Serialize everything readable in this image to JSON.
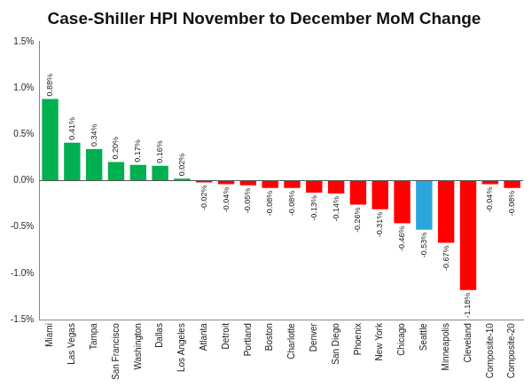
{
  "chart_data": {
    "type": "bar",
    "title": "Case-Shiller HPI November to December MoM Change",
    "categories": [
      "Miami",
      "Las Vegas",
      "Tampa",
      "San Francisco",
      "Washington",
      "Dallas",
      "Los Angeles",
      "Atlanta",
      "Detroit",
      "Portland",
      "Boston",
      "Charlotte",
      "Denver",
      "San Diego",
      "Phoenix",
      "New York",
      "Chicago",
      "Seattle",
      "Minneapolis",
      "Cleveland",
      "Composite-10",
      "Composite-20"
    ],
    "values": [
      0.88,
      0.41,
      0.34,
      0.2,
      0.17,
      0.16,
      0.02,
      -0.02,
      -0.04,
      -0.05,
      -0.08,
      -0.08,
      -0.13,
      -0.14,
      -0.26,
      -0.31,
      -0.46,
      -0.53,
      -0.67,
      -1.18,
      -0.04,
      -0.08
    ],
    "value_labels": [
      "0.88%",
      "0.41%",
      "0.34%",
      "0.20%",
      "0.17%",
      "0.16%",
      "0.02%",
      "-0.02%",
      "-0.04%",
      "-0.05%",
      "-0.08%",
      "-0.08%",
      "-0.13%",
      "-0.14%",
      "-0.26%",
      "-0.31%",
      "-0.46%",
      "-0.53%",
      "-0.67%",
      "-1.18%",
      "-0.04%",
      "-0.08%"
    ],
    "colors": [
      "#00b050",
      "#00b050",
      "#00b050",
      "#00b050",
      "#00b050",
      "#00b050",
      "#00b050",
      "#ff0000",
      "#ff0000",
      "#ff0000",
      "#ff0000",
      "#ff0000",
      "#ff0000",
      "#ff0000",
      "#ff0000",
      "#ff0000",
      "#ff0000",
      "#2aa6dc",
      "#ff0000",
      "#ff0000",
      "#ff0000",
      "#ff0000"
    ],
    "ylim": [
      -1.5,
      1.5
    ],
    "yticks": [
      {
        "value": -1.5,
        "label": "-1.5%"
      },
      {
        "value": -1.0,
        "label": "-1.0%"
      },
      {
        "value": -0.5,
        "label": "-0.5%"
      },
      {
        "value": 0.0,
        "label": "0.0%"
      },
      {
        "value": 0.5,
        "label": "0.5%"
      },
      {
        "value": 1.0,
        "label": "1.0%"
      },
      {
        "value": 1.5,
        "label": "1.5%"
      }
    ],
    "grid": false,
    "data_labels": true
  }
}
